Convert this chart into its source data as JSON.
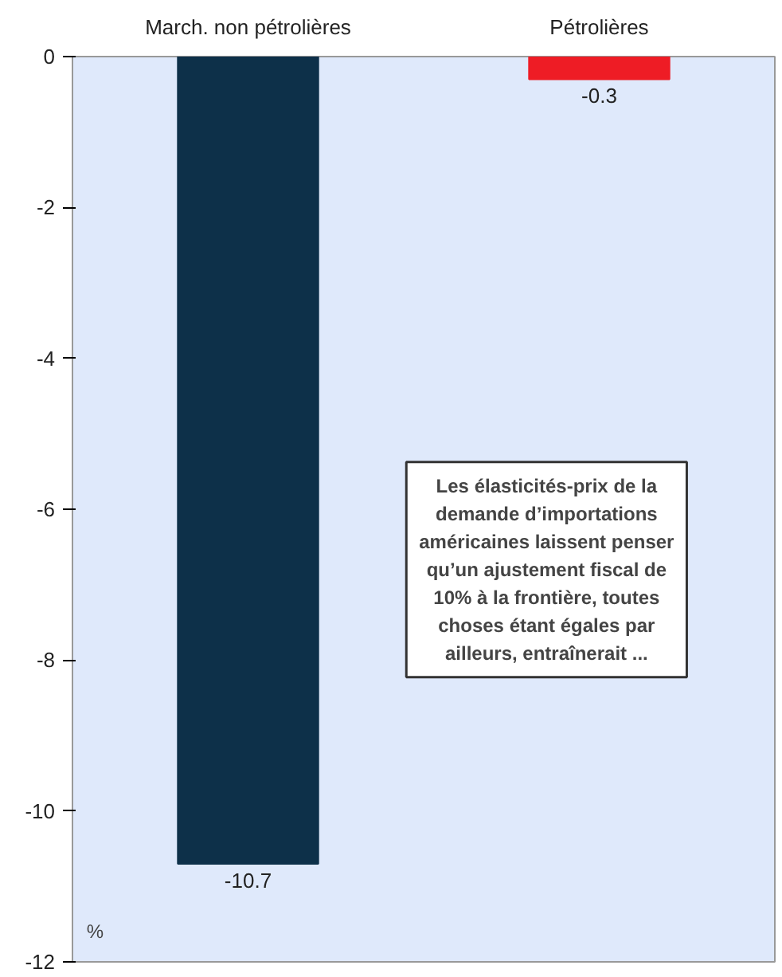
{
  "chart_data": {
    "type": "bar",
    "categories": [
      "March. non pétrolières",
      "Pétrolières"
    ],
    "values": [
      -10.7,
      -0.3
    ],
    "colors": [
      "#0d3049",
      "#ee1c25"
    ],
    "ylim": [
      -12,
      0
    ],
    "yticks": [
      0,
      -2,
      -4,
      -6,
      -8,
      -10,
      -12
    ],
    "data_labels": true,
    "grid": false,
    "annotations": [
      "%",
      "Les élasticités-prix de la demande d’importations américaines laissent penser qu’un ajustement fiscal de 10% à la frontière, toutes choses étant égales par ailleurs, entraînerait ..."
    ]
  }
}
